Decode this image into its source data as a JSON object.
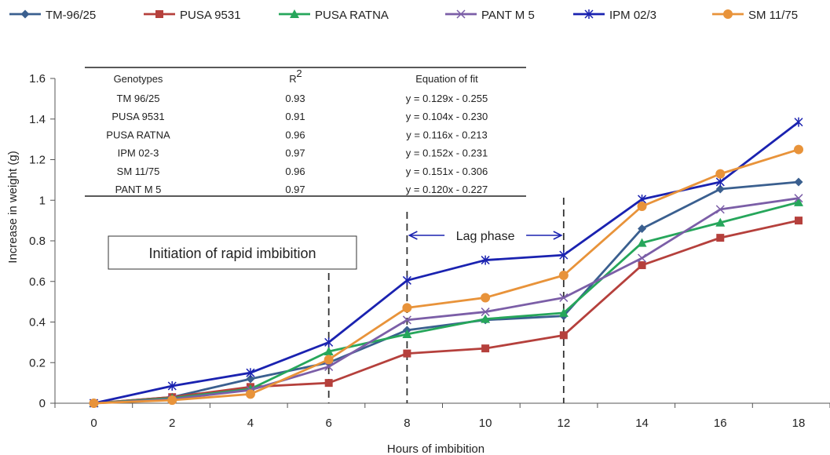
{
  "chart_data": {
    "type": "line",
    "title": "",
    "xlabel": "Hours of imbibition",
    "ylabel": "Increase in weight (g)",
    "x": [
      0,
      2,
      4,
      6,
      8,
      10,
      12,
      14,
      16,
      18
    ],
    "xlim": [
      -1,
      19
    ],
    "ylim": [
      0,
      1.6
    ],
    "x_ticks": [
      "0",
      "2",
      "4",
      "6",
      "8",
      "10",
      "12",
      "14",
      "16",
      "18"
    ],
    "y_ticks": [
      "0",
      "0.2",
      "0.4",
      "0.6",
      "0.8",
      "1",
      "1.2",
      "1.4",
      "1.6"
    ],
    "grid": false,
    "legend_position": "top",
    "series": [
      {
        "name": "TM-96/25",
        "color": "#3A5F8F",
        "marker": "diamond",
        "values": [
          0,
          0.03,
          0.12,
          0.2,
          0.36,
          0.41,
          0.43,
          0.86,
          1.055,
          1.09
        ]
      },
      {
        "name": "PUSA 9531",
        "color": "#B5403C",
        "marker": "square",
        "values": [
          0,
          0.03,
          0.08,
          0.1,
          0.245,
          0.27,
          0.335,
          0.68,
          0.815,
          0.9
        ]
      },
      {
        "name": "PUSA RATNA",
        "color": "#26A65B",
        "marker": "triangle",
        "values": [
          0,
          0.025,
          0.07,
          0.255,
          0.34,
          0.415,
          0.445,
          0.79,
          0.89,
          0.99
        ]
      },
      {
        "name": "PANT M 5",
        "color": "#7B5EA7",
        "marker": "x",
        "values": [
          0,
          0.02,
          0.065,
          0.18,
          0.41,
          0.45,
          0.52,
          0.715,
          0.955,
          1.01
        ]
      },
      {
        "name": "IPM 02/3",
        "color": "#1A22B0",
        "marker": "star",
        "values": [
          0,
          0.085,
          0.15,
          0.3,
          0.605,
          0.705,
          0.73,
          1.005,
          1.09,
          1.385
        ]
      },
      {
        "name": "SM 11/75",
        "color": "#E8933A",
        "marker": "circle",
        "values": [
          0,
          0.015,
          0.045,
          0.215,
          0.47,
          0.52,
          0.63,
          0.97,
          1.13,
          1.25
        ]
      }
    ],
    "annotations": {
      "rapid_imbibition_label": "Initiation of rapid imbibition",
      "lag_phase_label": "Lag phase",
      "dashed_lines_x": [
        6,
        8,
        12
      ],
      "lag_phase_range": [
        8,
        12
      ]
    },
    "fit_table": {
      "headers": [
        "Genotypes",
        "R",
        "2",
        "Equation of fit"
      ],
      "rows": [
        [
          "TM 96/25",
          "0.93",
          "y = 0.129x - 0.255"
        ],
        [
          "PUSA 9531",
          "0.91",
          "y = 0.104x - 0.230"
        ],
        [
          "PUSA RATNA",
          "0.96",
          "y = 0.116x - 0.213"
        ],
        [
          "IPM 02-3",
          "0.97",
          "y = 0.152x - 0.231"
        ],
        [
          "SM 11/75",
          "0.96",
          "y = 0.151x - 0.306"
        ],
        [
          "PANT M 5",
          "0.97",
          "y = 0.120x - 0.227"
        ]
      ]
    }
  }
}
